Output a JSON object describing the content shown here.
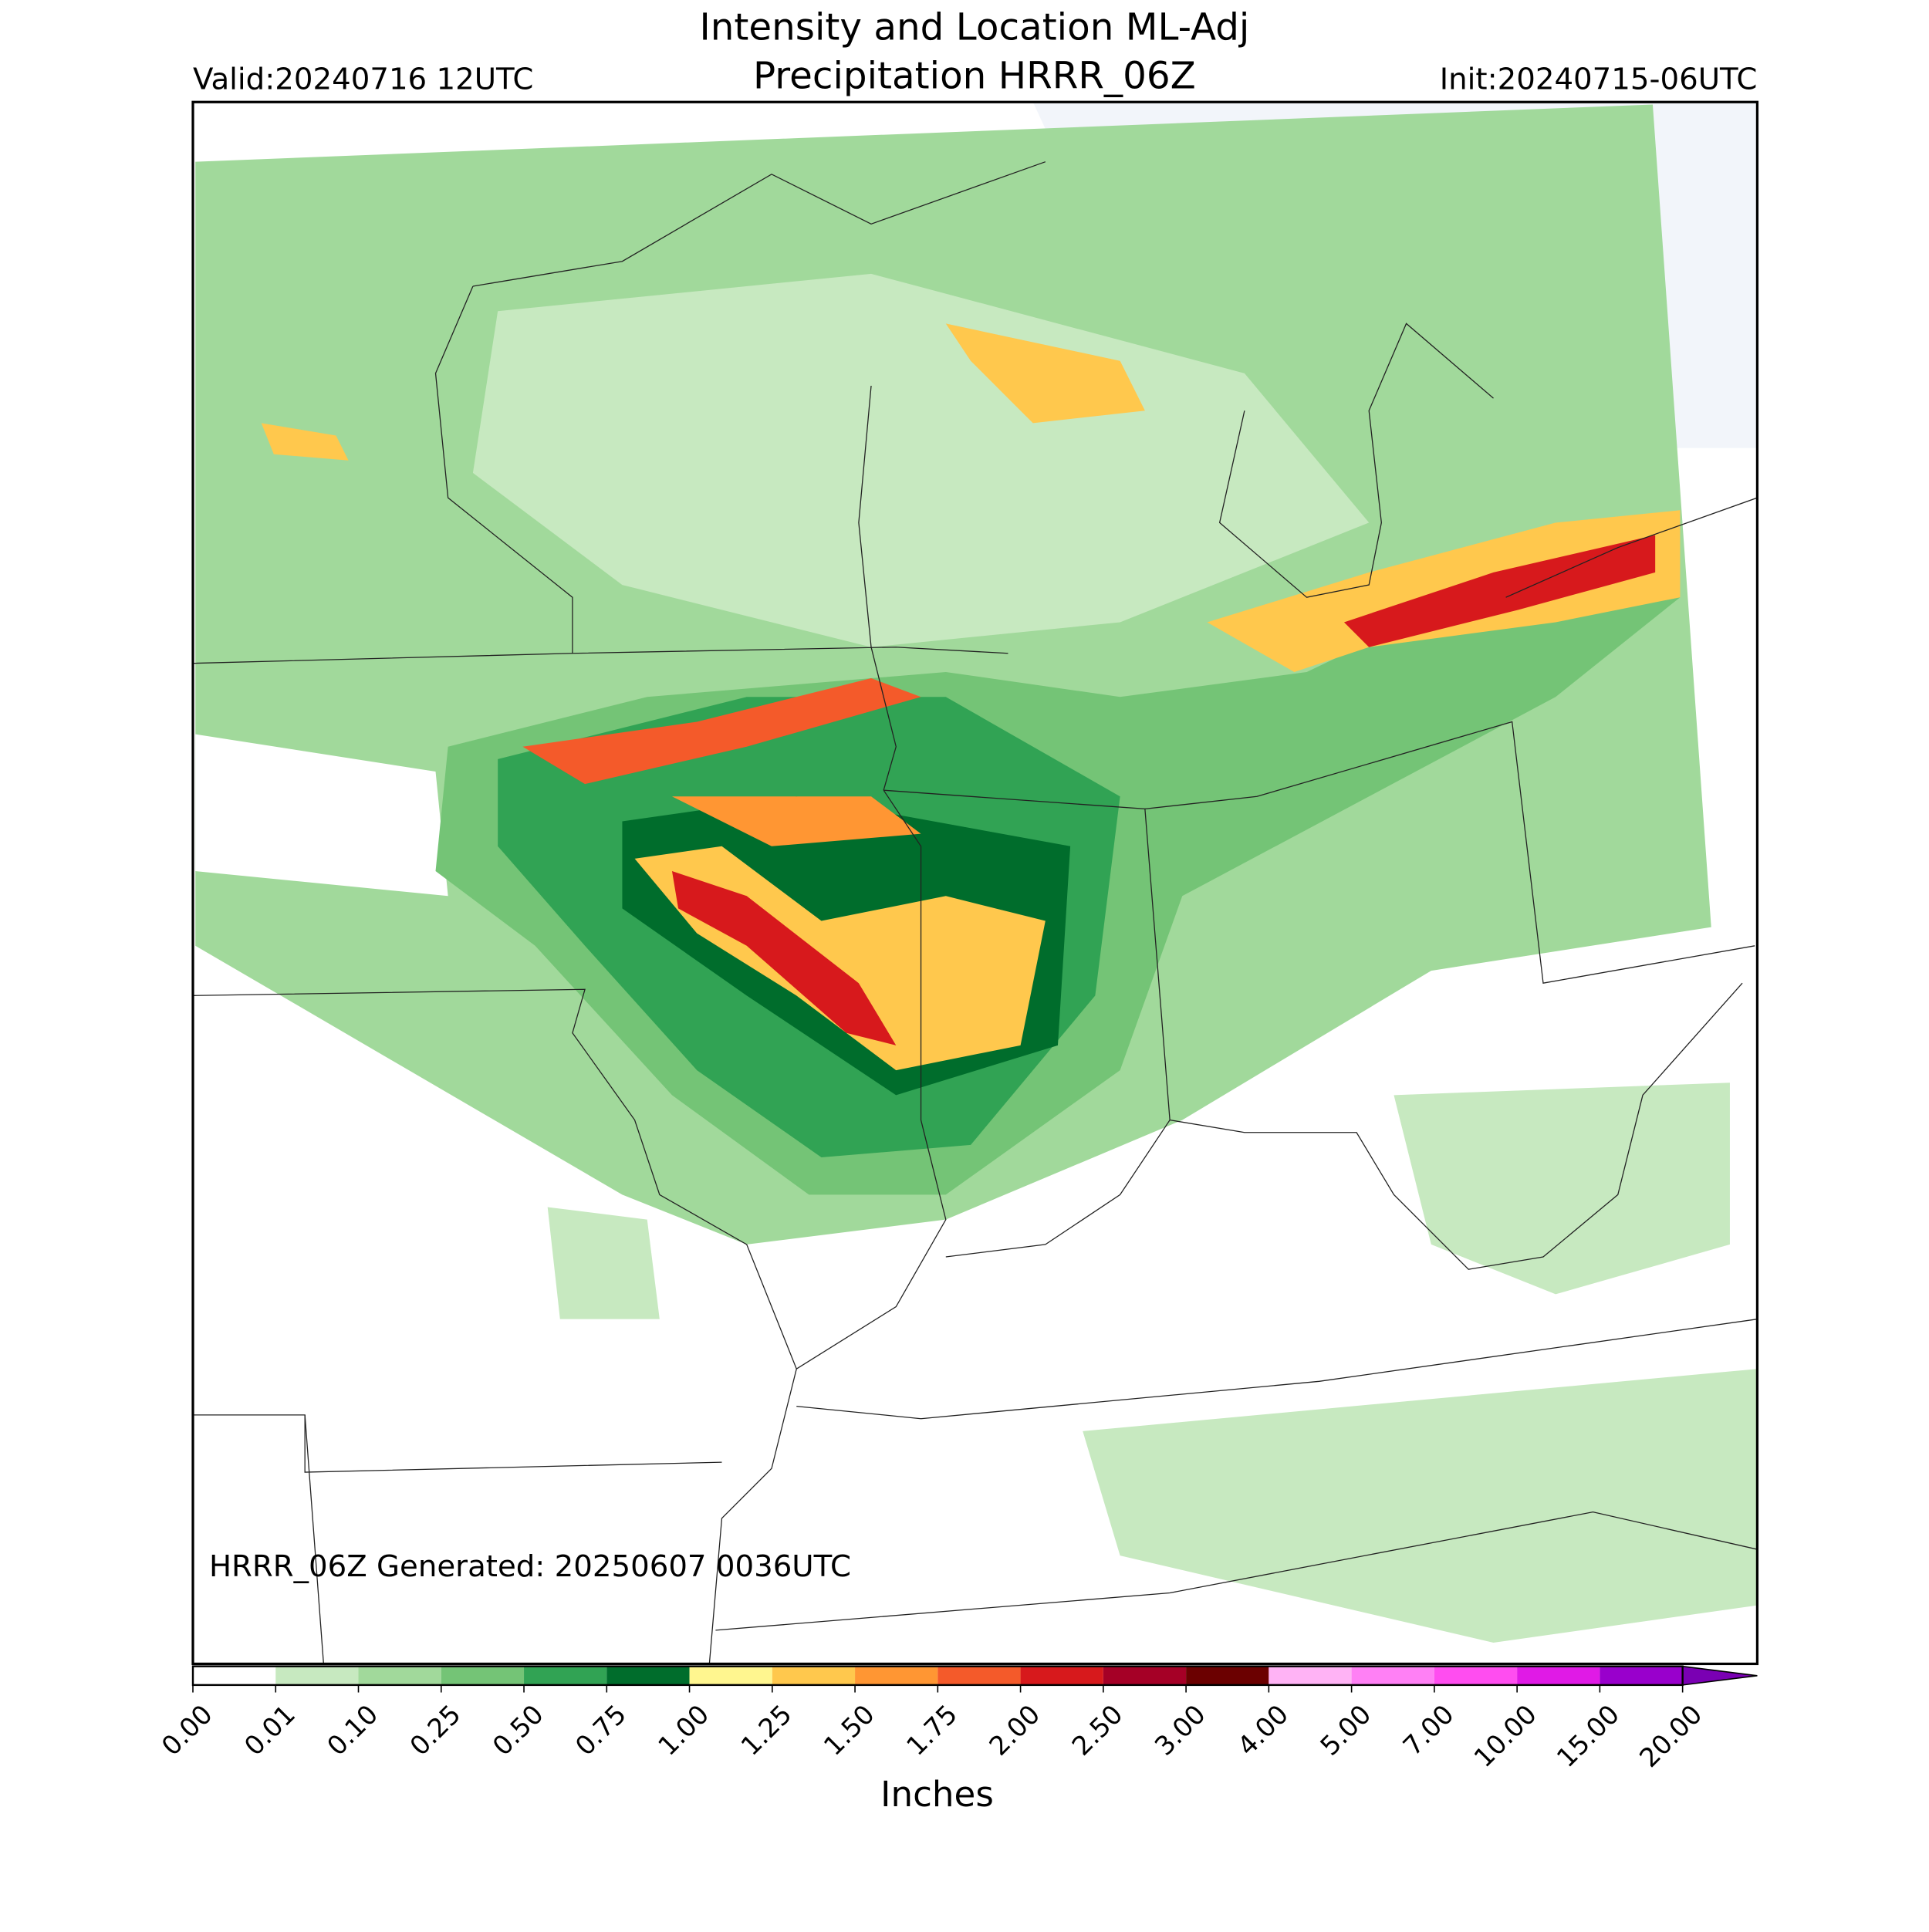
{
  "title": [
    "Intensity and Location ML-Adj",
    "Precipitation HRRR_06Z"
  ],
  "valid": "Valid:20240716 12UTC",
  "init": "Init:20240715-06UTC",
  "footer": "HRRR_06Z Generated: 20250607 0036UTC",
  "colorbar": {
    "label": "Inches",
    "ticks": [
      {
        "value": 0,
        "label": "0.00"
      },
      {
        "value": 0.01,
        "label": "0.01"
      },
      {
        "value": 0.1,
        "label": "0.10"
      },
      {
        "value": 0.25,
        "label": "0.25"
      },
      {
        "value": 0.5,
        "label": "0.50"
      },
      {
        "value": 0.75,
        "label": "0.75"
      },
      {
        "value": 1,
        "label": "1.00"
      },
      {
        "value": 1.25,
        "label": "1.25"
      },
      {
        "value": 1.5,
        "label": "1.50"
      },
      {
        "value": 1.75,
        "label": "1.75"
      },
      {
        "value": 2,
        "label": "2.00"
      },
      {
        "value": 2.5,
        "label": "2.50"
      },
      {
        "value": 3,
        "label": "3.00"
      },
      {
        "value": 4,
        "label": "4.00"
      },
      {
        "value": 5,
        "label": "5.00"
      },
      {
        "value": 7,
        "label": "7.00"
      },
      {
        "value": 10,
        "label": "10.00"
      },
      {
        "value": 15,
        "label": "15.00"
      },
      {
        "value": 20,
        "label": "20.00"
      }
    ],
    "colors": [
      "#ffffff",
      "#c7e9c0",
      "#a1d99b",
      "#74c476",
      "#31a354",
      "#006d2c",
      "#fff68f",
      "#ffc84d",
      "#ff9633",
      "#f45a2a",
      "#d7191c",
      "#a50026",
      "#6b0000",
      "#ffb3f5",
      "#ff80f5",
      "#ff4df0",
      "#e01ae6",
      "#9900cc"
    ],
    "extend_color": "#7a00b3"
  }
}
